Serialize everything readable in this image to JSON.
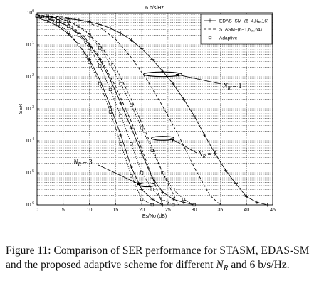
{
  "chart_data": {
    "type": "line",
    "title": "6 b/s/Hz",
    "xlabel": "Es/No (dB)",
    "ylabel": "SER",
    "xlim": [
      0,
      45
    ],
    "ylim": [
      1e-06,
      1
    ],
    "yscale": "log",
    "grid": true,
    "xticks": [
      "0",
      "5",
      "10",
      "15",
      "20",
      "25",
      "30",
      "35",
      "40",
      "45"
    ],
    "yticks": [
      {
        "base": "10",
        "exp": "0"
      },
      {
        "base": "10",
        "exp": "-1"
      },
      {
        "base": "10",
        "exp": "-2"
      },
      {
        "base": "10",
        "exp": "-3"
      },
      {
        "base": "10",
        "exp": "-4"
      },
      {
        "base": "10",
        "exp": "-5"
      },
      {
        "base": "10",
        "exp": "-6"
      }
    ],
    "legend": {
      "placement": "top-right",
      "entries": [
        {
          "text": "EDAS−SM−(6−4,N",
          "sub": "R",
          "tail": ",16)",
          "style": "solid",
          "marker": "plus"
        },
        {
          "text": "STASM−(6−1,N",
          "sub": "R",
          "tail": ",64)",
          "style": "dashed",
          "marker": "none"
        },
        {
          "text": "Adaptive",
          "sub": "",
          "tail": "",
          "style": "none",
          "marker": "square"
        }
      ]
    },
    "annotations": [
      {
        "label": "N",
        "sub": "R",
        "rest": " = 1"
      },
      {
        "label": "N",
        "sub": "R",
        "rest": " = 2"
      },
      {
        "label": "N",
        "sub": "R",
        "rest": " = 3"
      }
    ],
    "series": [
      {
        "group": "NR=1",
        "style": "solid",
        "marker": "plus",
        "x": [
          0,
          2,
          4,
          6,
          8,
          10,
          12,
          14,
          16,
          18,
          20,
          22,
          24,
          26,
          28,
          30,
          32,
          34,
          36,
          38,
          40,
          42,
          44
        ],
        "y": [
          0.8,
          0.75,
          0.7,
          0.65,
          0.6,
          0.52,
          0.43,
          0.33,
          0.23,
          0.14,
          0.075,
          0.035,
          0.015,
          0.006,
          0.002,
          0.0006,
          0.00015,
          4e-05,
          1.2e-05,
          4.5e-06,
          1.8e-06,
          1.2e-06,
          1e-06
        ]
      },
      {
        "group": "NR=1",
        "style": "dashed",
        "marker": "none",
        "x": [
          0,
          3,
          6,
          9,
          12,
          15,
          18,
          21,
          24,
          27,
          30,
          33,
          35
        ],
        "y": [
          0.85,
          0.8,
          0.7,
          0.55,
          0.35,
          0.15,
          0.04,
          0.008,
          0.0012,
          0.00015,
          1.5e-05,
          2e-06,
          1e-06
        ]
      },
      {
        "group": "NR=1",
        "style": "dotted",
        "marker": "square",
        "x": [
          0,
          2,
          4,
          6,
          8,
          10,
          12,
          14,
          16,
          18,
          20,
          22,
          24,
          26,
          28,
          30
        ],
        "y": [
          0.85,
          0.78,
          0.68,
          0.55,
          0.38,
          0.2,
          0.08,
          0.025,
          0.006,
          0.0013,
          0.00025,
          5e-05,
          1e-05,
          3e-06,
          1.5e-06,
          1e-06
        ]
      },
      {
        "group": "NR=2",
        "style": "solid",
        "marker": "plus",
        "x": [
          0,
          2,
          4,
          6,
          8,
          10,
          12,
          14,
          16,
          18,
          20,
          22,
          24,
          26,
          28,
          30
        ],
        "y": [
          0.75,
          0.65,
          0.52,
          0.38,
          0.22,
          0.1,
          0.035,
          0.008,
          0.0015,
          0.00025,
          4e-05,
          7e-06,
          2.5e-06,
          1.5e-06,
          1.2e-06,
          1e-06
        ]
      },
      {
        "group": "NR=2",
        "style": "dashed",
        "marker": "none",
        "x": [
          0,
          3,
          6,
          9,
          12,
          15,
          18,
          21,
          24,
          27
        ],
        "y": [
          0.85,
          0.75,
          0.55,
          0.3,
          0.1,
          0.02,
          0.002,
          0.00015,
          1e-05,
          1e-06
        ]
      },
      {
        "group": "NR=2",
        "style": "dotted",
        "marker": "square",
        "x": [
          0,
          2,
          4,
          6,
          8,
          10,
          12,
          14,
          16,
          18,
          20,
          22,
          24,
          26
        ],
        "y": [
          0.82,
          0.7,
          0.55,
          0.38,
          0.2,
          0.08,
          0.022,
          0.004,
          0.0006,
          8e-05,
          1e-05,
          3e-06,
          1.5e-06,
          1e-06
        ]
      },
      {
        "group": "NR=3",
        "style": "solid",
        "marker": "plus",
        "x": [
          0,
          2,
          4,
          6,
          8,
          10,
          12,
          14,
          16,
          18,
          20,
          22,
          24
        ],
        "y": [
          0.7,
          0.55,
          0.38,
          0.22,
          0.1,
          0.035,
          0.008,
          0.0012,
          0.00015,
          1.5e-05,
          3e-06,
          1.5e-06,
          1e-06
        ]
      },
      {
        "group": "NR=3",
        "style": "dashed",
        "marker": "none",
        "x": [
          0,
          3,
          6,
          9,
          12,
          15,
          18,
          21,
          24
        ],
        "y": [
          0.85,
          0.7,
          0.45,
          0.18,
          0.04,
          0.005,
          0.0004,
          2e-05,
          1e-06
        ]
      },
      {
        "group": "NR=3",
        "style": "dotted",
        "marker": "square",
        "x": [
          0,
          2,
          4,
          6,
          8,
          10,
          12,
          14,
          16,
          18,
          20,
          22
        ],
        "y": [
          0.8,
          0.65,
          0.45,
          0.25,
          0.1,
          0.028,
          0.006,
          0.0008,
          8e-05,
          8e-06,
          1.5e-06,
          1e-06
        ]
      }
    ]
  },
  "caption": {
    "prefix": "Figure 11:  Comparison of SER performance for STASM, EDAS-SM and the proposed adaptive scheme for different ",
    "nr_main": "N",
    "nr_sub": "R",
    "suffix": " and 6 b/s/Hz."
  }
}
